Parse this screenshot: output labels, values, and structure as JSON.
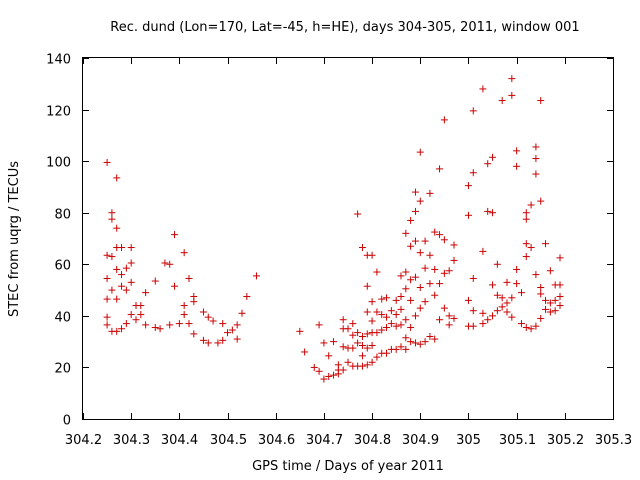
{
  "chart_data": {
    "type": "scatter",
    "title": "Rec. dund (Lon=170, Lat=-45, h=HE), days 304-305, 2011, window 001",
    "xlabel": "GPS time / Days of year 2011",
    "ylabel": "STEC from uqrg / TECUs",
    "xlim": [
      304.2,
      305.3
    ],
    "ylim": [
      0,
      140
    ],
    "xticks": [
      "304.2",
      "304.3",
      "304.4",
      "304.5",
      "304.6",
      "304.7",
      "304.8",
      "304.9",
      "305",
      "305.1",
      "305.2",
      "305.3"
    ],
    "yticks": [
      "0",
      "20",
      "40",
      "60",
      "80",
      "100",
      "120",
      "140"
    ],
    "grid": false,
    "marker": "+",
    "marker_color": "#cc0000",
    "points": [
      [
        304.25,
        99.5
      ],
      [
        304.25,
        63.5
      ],
      [
        304.25,
        54.5
      ],
      [
        304.25,
        46.5
      ],
      [
        304.25,
        39.5
      ],
      [
        304.25,
        36.5
      ],
      [
        304.26,
        80.0
      ],
      [
        304.26,
        77.5
      ],
      [
        304.26,
        63.0
      ],
      [
        304.26,
        50.0
      ],
      [
        304.26,
        34.0
      ],
      [
        304.27,
        93.5
      ],
      [
        304.27,
        74.0
      ],
      [
        304.27,
        66.5
      ],
      [
        304.27,
        58.0
      ],
      [
        304.27,
        46.5
      ],
      [
        304.27,
        34.0
      ],
      [
        304.28,
        66.5
      ],
      [
        304.28,
        56.0
      ],
      [
        304.28,
        51.5
      ],
      [
        304.28,
        35.0
      ],
      [
        304.29,
        58.5
      ],
      [
        304.29,
        50.0
      ],
      [
        304.29,
        37.0
      ],
      [
        304.3,
        66.5
      ],
      [
        304.3,
        60.5
      ],
      [
        304.3,
        53.0
      ],
      [
        304.3,
        40.5
      ],
      [
        304.31,
        44.0
      ],
      [
        304.31,
        38.5
      ],
      [
        304.32,
        44.0
      ],
      [
        304.32,
        40.5
      ],
      [
        304.33,
        49.0
      ],
      [
        304.33,
        36.5
      ],
      [
        304.35,
        53.5
      ],
      [
        304.35,
        35.5
      ],
      [
        304.36,
        35.0
      ],
      [
        304.37,
        60.5
      ],
      [
        304.38,
        60.0
      ],
      [
        304.38,
        36.5
      ],
      [
        304.39,
        71.5
      ],
      [
        304.39,
        51.5
      ],
      [
        304.4,
        37.0
      ],
      [
        304.41,
        64.5
      ],
      [
        304.41,
        44.0
      ],
      [
        304.41,
        40.5
      ],
      [
        304.42,
        54.5
      ],
      [
        304.42,
        37.0
      ],
      [
        304.43,
        47.5
      ],
      [
        304.43,
        45.5
      ],
      [
        304.43,
        33.0
      ],
      [
        304.45,
        41.5
      ],
      [
        304.45,
        30.5
      ],
      [
        304.46,
        39.5
      ],
      [
        304.46,
        29.5
      ],
      [
        304.47,
        38.0
      ],
      [
        304.48,
        29.5
      ],
      [
        304.49,
        37.0
      ],
      [
        304.49,
        30.5
      ],
      [
        304.5,
        33.5
      ],
      [
        304.51,
        34.5
      ],
      [
        304.52,
        31.0
      ],
      [
        304.52,
        36.5
      ],
      [
        304.53,
        41.0
      ],
      [
        304.54,
        47.5
      ],
      [
        304.56,
        55.5
      ],
      [
        304.65,
        34.0
      ],
      [
        304.66,
        26.0
      ],
      [
        304.68,
        20.0
      ],
      [
        304.69,
        36.5
      ],
      [
        304.69,
        18.5
      ],
      [
        304.7,
        29.5
      ],
      [
        304.7,
        15.5
      ],
      [
        304.71,
        24.5
      ],
      [
        304.71,
        16.5
      ],
      [
        304.72,
        30.0
      ],
      [
        304.72,
        17.0
      ],
      [
        304.73,
        21.0
      ],
      [
        304.73,
        19.0
      ],
      [
        304.73,
        17.5
      ],
      [
        304.74,
        38.5
      ],
      [
        304.74,
        35.0
      ],
      [
        304.74,
        28.0
      ],
      [
        304.74,
        19.0
      ],
      [
        304.75,
        35.0
      ],
      [
        304.75,
        27.5
      ],
      [
        304.75,
        22.0
      ],
      [
        304.76,
        37.0
      ],
      [
        304.76,
        32.5
      ],
      [
        304.76,
        27.5
      ],
      [
        304.76,
        20.5
      ],
      [
        304.77,
        79.5
      ],
      [
        304.77,
        33.5
      ],
      [
        304.77,
        29.5
      ],
      [
        304.77,
        20.5
      ],
      [
        304.78,
        66.5
      ],
      [
        304.78,
        32.0
      ],
      [
        304.78,
        28.5
      ],
      [
        304.78,
        24.5
      ],
      [
        304.78,
        20.5
      ],
      [
        304.79,
        63.5
      ],
      [
        304.79,
        51.5
      ],
      [
        304.79,
        41.5
      ],
      [
        304.79,
        33.0
      ],
      [
        304.79,
        27.5
      ],
      [
        304.79,
        21.0
      ],
      [
        304.8,
        63.5
      ],
      [
        304.8,
        45.5
      ],
      [
        304.8,
        38.0
      ],
      [
        304.8,
        33.5
      ],
      [
        304.8,
        28.5
      ],
      [
        304.8,
        22.0
      ],
      [
        304.81,
        57.0
      ],
      [
        304.81,
        41.5
      ],
      [
        304.81,
        33.5
      ],
      [
        304.81,
        24.0
      ],
      [
        304.82,
        46.5
      ],
      [
        304.82,
        40.5
      ],
      [
        304.82,
        34.5
      ],
      [
        304.82,
        25.5
      ],
      [
        304.83,
        47.0
      ],
      [
        304.83,
        39.5
      ],
      [
        304.83,
        35.5
      ],
      [
        304.83,
        25.5
      ],
      [
        304.84,
        42.0
      ],
      [
        304.84,
        37.0
      ],
      [
        304.84,
        27.0
      ],
      [
        304.85,
        46.0
      ],
      [
        304.85,
        40.5
      ],
      [
        304.85,
        36.0
      ],
      [
        304.85,
        27.0
      ],
      [
        304.86,
        55.5
      ],
      [
        304.86,
        47.5
      ],
      [
        304.86,
        42.5
      ],
      [
        304.86,
        36.5
      ],
      [
        304.86,
        28.0
      ],
      [
        304.87,
        72.0
      ],
      [
        304.87,
        57.0
      ],
      [
        304.87,
        50.5
      ],
      [
        304.87,
        38.5
      ],
      [
        304.87,
        31.5
      ],
      [
        304.87,
        27.0
      ],
      [
        304.88,
        77.0
      ],
      [
        304.88,
        67.0
      ],
      [
        304.88,
        54.0
      ],
      [
        304.88,
        46.0
      ],
      [
        304.88,
        35.5
      ],
      [
        304.88,
        30.0
      ],
      [
        304.89,
        88.0
      ],
      [
        304.89,
        80.5
      ],
      [
        304.89,
        69.0
      ],
      [
        304.89,
        55.0
      ],
      [
        304.89,
        40.0
      ],
      [
        304.89,
        29.5
      ],
      [
        304.9,
        103.5
      ],
      [
        304.9,
        84.5
      ],
      [
        304.9,
        64.5
      ],
      [
        304.9,
        51.0
      ],
      [
        304.9,
        43.0
      ],
      [
        304.9,
        29.0
      ],
      [
        304.91,
        69.0
      ],
      [
        304.91,
        58.5
      ],
      [
        304.91,
        45.5
      ],
      [
        304.91,
        30.0
      ],
      [
        304.92,
        87.5
      ],
      [
        304.92,
        63.5
      ],
      [
        304.92,
        52.5
      ],
      [
        304.92,
        32.0
      ],
      [
        304.93,
        72.5
      ],
      [
        304.93,
        58.0
      ],
      [
        304.93,
        48.0
      ],
      [
        304.93,
        31.0
      ],
      [
        304.94,
        97.0
      ],
      [
        304.94,
        71.5
      ],
      [
        304.94,
        52.5
      ],
      [
        304.94,
        38.5
      ],
      [
        304.95,
        116.0
      ],
      [
        304.95,
        69.5
      ],
      [
        304.95,
        56.5
      ],
      [
        304.95,
        43.0
      ],
      [
        304.96,
        57.5
      ],
      [
        304.96,
        40.0
      ],
      [
        304.96,
        36.5
      ],
      [
        304.97,
        67.5
      ],
      [
        304.97,
        61.5
      ],
      [
        304.97,
        39.0
      ],
      [
        305.0,
        90.5
      ],
      [
        305.0,
        79.0
      ],
      [
        305.0,
        46.0
      ],
      [
        305.0,
        36.0
      ],
      [
        305.01,
        119.5
      ],
      [
        305.01,
        95.5
      ],
      [
        305.01,
        54.5
      ],
      [
        305.01,
        42.0
      ],
      [
        305.01,
        36.0
      ],
      [
        305.03,
        128.0
      ],
      [
        305.03,
        65.0
      ],
      [
        305.03,
        41.0
      ],
      [
        305.03,
        37.0
      ],
      [
        305.04,
        99.0
      ],
      [
        305.04,
        80.5
      ],
      [
        305.04,
        38.5
      ],
      [
        305.05,
        101.5
      ],
      [
        305.05,
        80.0
      ],
      [
        305.05,
        52.0
      ],
      [
        305.05,
        40.0
      ],
      [
        305.06,
        60.0
      ],
      [
        305.06,
        48.0
      ],
      [
        305.06,
        42.0
      ],
      [
        305.07,
        123.5
      ],
      [
        305.07,
        47.0
      ],
      [
        305.07,
        43.5
      ],
      [
        305.08,
        53.0
      ],
      [
        305.08,
        45.0
      ],
      [
        305.08,
        41.5
      ],
      [
        305.09,
        132.0
      ],
      [
        305.09,
        125.5
      ],
      [
        305.09,
        47.0
      ],
      [
        305.09,
        39.5
      ],
      [
        305.1,
        104.0
      ],
      [
        305.1,
        98.0
      ],
      [
        305.1,
        58.0
      ],
      [
        305.1,
        52.5
      ],
      [
        305.11,
        49.0
      ],
      [
        305.11,
        37.0
      ],
      [
        305.12,
        80.0
      ],
      [
        305.12,
        77.5
      ],
      [
        305.12,
        68.0
      ],
      [
        305.12,
        63.0
      ],
      [
        305.12,
        35.5
      ],
      [
        305.13,
        83.0
      ],
      [
        305.13,
        66.5
      ],
      [
        305.13,
        35.0
      ],
      [
        305.14,
        105.5
      ],
      [
        305.14,
        101.0
      ],
      [
        305.14,
        95.0
      ],
      [
        305.14,
        56.0
      ],
      [
        305.14,
        36.0
      ],
      [
        305.15,
        123.5
      ],
      [
        305.15,
        84.5
      ],
      [
        305.15,
        51.0
      ],
      [
        305.15,
        48.5
      ],
      [
        305.15,
        39.0
      ],
      [
        305.16,
        68.0
      ],
      [
        305.16,
        46.0
      ],
      [
        305.16,
        42.5
      ],
      [
        305.17,
        57.5
      ],
      [
        305.17,
        45.0
      ],
      [
        305.17,
        41.5
      ],
      [
        305.18,
        52.0
      ],
      [
        305.18,
        46.0
      ],
      [
        305.18,
        42.0
      ],
      [
        305.19,
        62.5
      ],
      [
        305.19,
        52.0
      ],
      [
        305.19,
        47.5
      ],
      [
        305.19,
        44.0
      ]
    ]
  }
}
